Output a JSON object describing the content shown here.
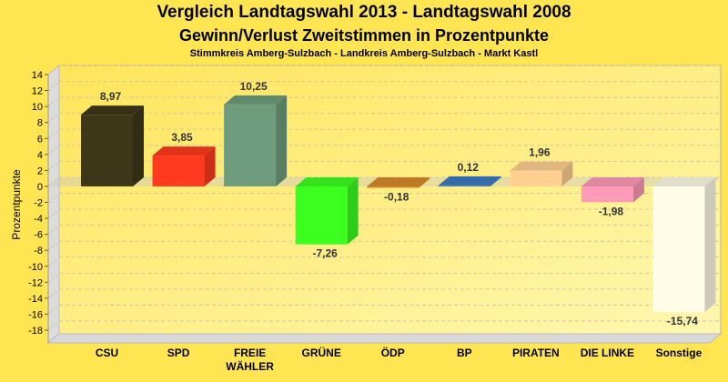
{
  "chart_data": {
    "type": "bar",
    "title": "Vergleich Landtagswahl 2013 - Landtagswahl 2008",
    "subtitle": "Gewinn/Verlust Zweitstimmen in Prozentpunkte",
    "subtitle2": "Stimmkreis Amberg-Sulzbach - Landkreis Amberg-Sulzbach - Markt Kastl",
    "xlabel": "",
    "ylabel": "Prozentpunkte",
    "ylim": [
      -18,
      14
    ],
    "yticks": [
      "14",
      "12",
      "10",
      "8",
      "6",
      "4",
      "2",
      "0",
      "-2",
      "-4",
      "-6",
      "-8",
      "-10",
      "-12",
      "-14",
      "-16",
      "-18"
    ],
    "ytick_values": [
      14,
      12,
      10,
      8,
      6,
      4,
      2,
      0,
      -2,
      -4,
      -6,
      -8,
      -10,
      -12,
      -14,
      -16,
      -18
    ],
    "grid": true,
    "categories": [
      "CSU",
      "SPD",
      "FREIE WÄHLER",
      "GRÜNE",
      "ÖDP",
      "BP",
      "PIRATEN",
      "DIE LINKE",
      "Sonstige"
    ],
    "category_lines": [
      [
        "CSU"
      ],
      [
        "SPD"
      ],
      [
        "FREIE",
        "WÄHLER"
      ],
      [
        "GRÜNE"
      ],
      [
        "ÖDP"
      ],
      [
        "BP"
      ],
      [
        "PIRATEN"
      ],
      [
        "DIE LINKE"
      ],
      [
        "Sonstige"
      ]
    ],
    "values": [
      8.97,
      3.85,
      10.25,
      -7.26,
      -0.18,
      0.12,
      1.96,
      -1.98,
      -15.74
    ],
    "labels": [
      "8,97",
      "3,85",
      "10,25",
      "-7,26",
      "-0,18",
      "0,12",
      "1,96",
      "-1,98",
      "-15,74"
    ],
    "colors": [
      "#3d3719",
      "#ff3a1e",
      "#6e9c7c",
      "#3cff20",
      "#d9892a",
      "#3b7bc0",
      "#ffd090",
      "#ff9ab8",
      "#fffde8"
    ]
  }
}
